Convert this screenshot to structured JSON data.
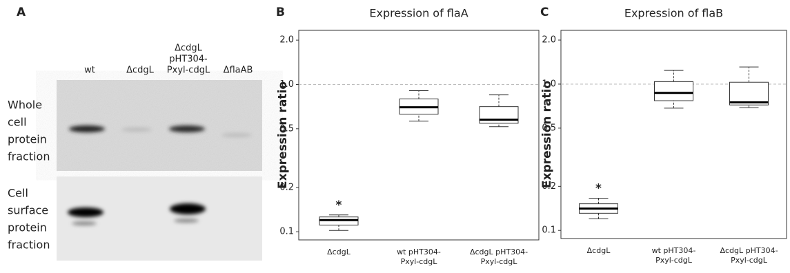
{
  "blot": {
    "panel": "A",
    "lanes": [
      [
        "wt"
      ],
      [
        "ΔcdgL"
      ],
      [
        "ΔcdgL",
        "pHT304-",
        "Pxyl-cdgL"
      ],
      [
        "ΔflaAB"
      ]
    ],
    "rows": [
      [
        "Whole",
        "cell",
        "protein",
        "fraction"
      ],
      [
        "Cell",
        "surface",
        "protein",
        "fraction"
      ]
    ]
  },
  "chart_data": [
    {
      "type": "box",
      "panel": "B",
      "title": "Expression of flaA",
      "ylabel": "Expression ratio",
      "categories": [
        [
          "ΔcdgL"
        ],
        [
          "wt pHT304-",
          "Pxyl-cdgL"
        ],
        [
          "ΔcdgL pHT304-",
          "Pxyl-cdgL"
        ]
      ],
      "stats": [
        [
          0.102,
          0.111,
          0.12,
          0.126,
          0.13
        ],
        [
          0.563,
          0.628,
          0.7,
          0.797,
          0.907
        ],
        [
          0.517,
          0.545,
          0.576,
          0.707,
          0.85
        ]
      ],
      "annotation": "*",
      "yscale": "log",
      "ylim": [
        0.088,
        2.33
      ],
      "yticks": [
        0.1,
        0.2,
        0.5,
        {
          "value": 1,
          "label": "1.0"
        },
        {
          "value": 2,
          "label": "2.0"
        }
      ],
      "reference_line": 1
    },
    {
      "type": "box",
      "panel": "C",
      "title": "Expression of flaB",
      "ylabel": "Expression ratio",
      "categories": [
        [
          "ΔcdgL"
        ],
        [
          "wt pHT304-",
          "Pxyl-cdgL"
        ],
        [
          "ΔcdgL pHT304-",
          "Pxyl-cdgL"
        ]
      ],
      "stats": [
        [
          0.12,
          0.131,
          0.141,
          0.152,
          0.166
        ],
        [
          0.685,
          0.77,
          0.87,
          1.04,
          1.24
        ],
        [
          0.69,
          0.72,
          0.75,
          1.03,
          1.31
        ]
      ],
      "annotation": "*",
      "yscale": "log",
      "ylim": [
        0.088,
        2.33
      ],
      "yticks": [
        0.1,
        0.2,
        0.5,
        {
          "value": 1,
          "label": "1.0"
        },
        {
          "value": 2,
          "label": "2.0"
        }
      ],
      "reference_line": 1
    }
  ]
}
